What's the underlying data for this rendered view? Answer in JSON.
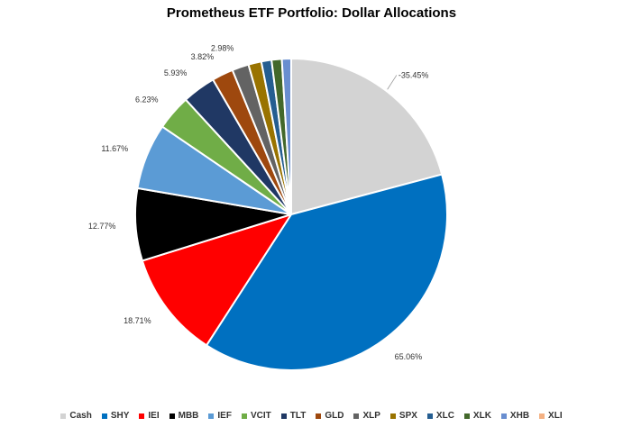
{
  "chart_data": {
    "type": "pie",
    "title": "Prometheus ETF Portfolio: Dollar Allocations",
    "slices": [
      {
        "name": "Cash",
        "value": 21.7,
        "label": "-35.45%",
        "color": "#d3d3d3"
      },
      {
        "name": "SHY",
        "value": 39.8,
        "label": "65.06%",
        "color": "#0070c0"
      },
      {
        "name": "IEI",
        "value": 11.5,
        "label": "18.71%",
        "color": "#ff0000"
      },
      {
        "name": "MBB",
        "value": 7.8,
        "label": "12.77%",
        "color": "#000000"
      },
      {
        "name": "IEF",
        "value": 7.1,
        "label": "11.67%",
        "color": "#5b9bd5"
      },
      {
        "name": "VCIT",
        "value": 3.8,
        "label": "6.23%",
        "color": "#70ad47"
      },
      {
        "name": "TLT",
        "value": 3.6,
        "label": "5.93%",
        "color": "#203864"
      },
      {
        "name": "GLD",
        "value": 2.3,
        "label": "3.82%",
        "color": "#9e480e"
      },
      {
        "name": "XLP",
        "value": 1.8,
        "label": "2.98%",
        "color": "#636363"
      },
      {
        "name": "SPX",
        "value": 1.4,
        "label": "",
        "color": "#997300"
      },
      {
        "name": "XLC",
        "value": 1.1,
        "label": "",
        "color": "#255e91"
      },
      {
        "name": "XLK",
        "value": 1.1,
        "label": "",
        "color": "#43682b"
      },
      {
        "name": "XHB",
        "value": 1.0,
        "label": "",
        "color": "#698ed0"
      },
      {
        "name": "XLI",
        "value": 0.0,
        "label": "",
        "color": "#f4b183"
      }
    ],
    "legend": "bottom"
  }
}
